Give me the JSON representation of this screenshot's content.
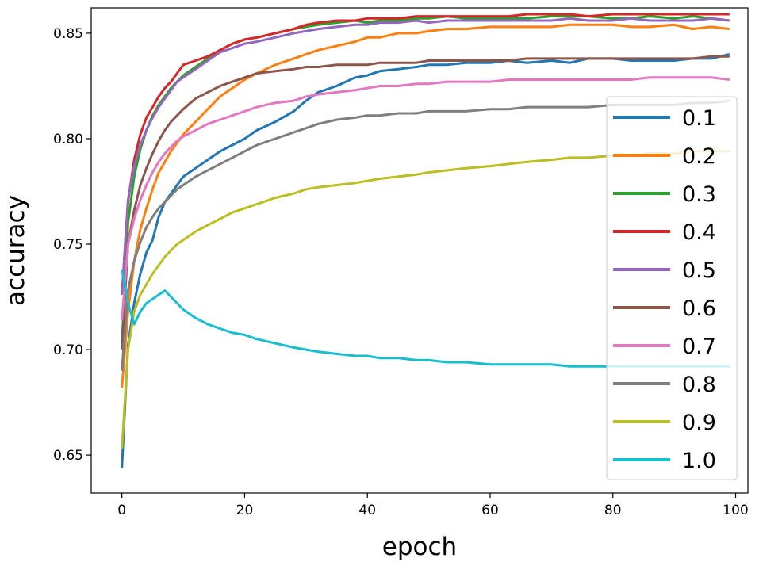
{
  "chart_data": {
    "type": "line",
    "title": "",
    "xlabel": "epoch",
    "ylabel": "accuracy",
    "xlim": [
      -5,
      102
    ],
    "ylim": [
      0.632,
      0.862
    ],
    "xticks": [
      0,
      20,
      40,
      60,
      80,
      100
    ],
    "xtick_labels": [
      "0",
      "20",
      "40",
      "60",
      "80",
      "100"
    ],
    "yticks": [
      0.65,
      0.7,
      0.75,
      0.8,
      0.85
    ],
    "ytick_labels": [
      "0.65",
      "0.70",
      "0.75",
      "0.80",
      "0.85"
    ],
    "grid": false,
    "legend_position": "right",
    "series": [
      {
        "name": "0.1",
        "color": "#1f77b4",
        "x": [
          0,
          1,
          2,
          3,
          4,
          5,
          6,
          7,
          8,
          9,
          10,
          12,
          14,
          16,
          18,
          20,
          22,
          25,
          28,
          30,
          32,
          35,
          38,
          40,
          42,
          45,
          48,
          50,
          53,
          56,
          60,
          63,
          66,
          70,
          73,
          76,
          80,
          83,
          86,
          90,
          93,
          96,
          99
        ],
        "y": [
          0.644,
          0.702,
          0.722,
          0.736,
          0.746,
          0.752,
          0.763,
          0.77,
          0.774,
          0.778,
          0.782,
          0.786,
          0.79,
          0.794,
          0.797,
          0.8,
          0.804,
          0.808,
          0.813,
          0.818,
          0.822,
          0.825,
          0.829,
          0.83,
          0.832,
          0.833,
          0.834,
          0.835,
          0.835,
          0.836,
          0.836,
          0.837,
          0.836,
          0.837,
          0.836,
          0.838,
          0.838,
          0.837,
          0.837,
          0.837,
          0.838,
          0.838,
          0.84
        ]
      },
      {
        "name": "0.2",
        "color": "#ff7f0e",
        "x": [
          0,
          1,
          2,
          3,
          4,
          5,
          6,
          7,
          8,
          9,
          10,
          12,
          14,
          16,
          18,
          20,
          22,
          25,
          28,
          30,
          32,
          35,
          38,
          40,
          42,
          45,
          48,
          50,
          53,
          56,
          60,
          63,
          66,
          70,
          73,
          76,
          80,
          83,
          86,
          90,
          93,
          96,
          99
        ],
        "y": [
          0.682,
          0.718,
          0.742,
          0.757,
          0.767,
          0.776,
          0.784,
          0.789,
          0.794,
          0.798,
          0.802,
          0.808,
          0.814,
          0.82,
          0.824,
          0.828,
          0.831,
          0.835,
          0.838,
          0.84,
          0.842,
          0.844,
          0.846,
          0.848,
          0.848,
          0.85,
          0.85,
          0.851,
          0.852,
          0.852,
          0.853,
          0.853,
          0.853,
          0.853,
          0.854,
          0.854,
          0.854,
          0.853,
          0.853,
          0.854,
          0.852,
          0.853,
          0.852
        ]
      },
      {
        "name": "0.3",
        "color": "#2ca02c",
        "x": [
          0,
          1,
          2,
          3,
          4,
          5,
          6,
          7,
          8,
          9,
          10,
          12,
          14,
          16,
          18,
          20,
          22,
          25,
          28,
          30,
          32,
          35,
          38,
          40,
          42,
          45,
          48,
          50,
          53,
          56,
          60,
          63,
          66,
          70,
          73,
          76,
          80,
          83,
          86,
          90,
          93,
          96,
          99
        ],
        "y": [
          0.703,
          0.76,
          0.782,
          0.795,
          0.804,
          0.811,
          0.816,
          0.82,
          0.824,
          0.827,
          0.83,
          0.834,
          0.838,
          0.842,
          0.845,
          0.847,
          0.848,
          0.85,
          0.852,
          0.853,
          0.854,
          0.855,
          0.856,
          0.855,
          0.856,
          0.856,
          0.857,
          0.857,
          0.858,
          0.857,
          0.857,
          0.857,
          0.857,
          0.858,
          0.858,
          0.858,
          0.857,
          0.857,
          0.858,
          0.857,
          0.858,
          0.857,
          0.856
        ]
      },
      {
        "name": "0.4",
        "color": "#d62728",
        "x": [
          0,
          1,
          2,
          3,
          4,
          5,
          6,
          7,
          8,
          9,
          10,
          12,
          14,
          16,
          18,
          20,
          22,
          25,
          28,
          30,
          32,
          35,
          38,
          40,
          42,
          45,
          48,
          50,
          53,
          56,
          60,
          63,
          66,
          70,
          73,
          76,
          80,
          83,
          86,
          90,
          93,
          96,
          99
        ],
        "y": [
          0.726,
          0.77,
          0.79,
          0.802,
          0.81,
          0.815,
          0.82,
          0.824,
          0.827,
          0.831,
          0.835,
          0.837,
          0.839,
          0.842,
          0.845,
          0.847,
          0.848,
          0.85,
          0.852,
          0.854,
          0.855,
          0.856,
          0.856,
          0.857,
          0.857,
          0.857,
          0.858,
          0.858,
          0.858,
          0.858,
          0.858,
          0.858,
          0.859,
          0.859,
          0.859,
          0.858,
          0.859,
          0.859,
          0.859,
          0.859,
          0.859,
          0.859,
          0.859
        ]
      },
      {
        "name": "0.5",
        "color": "#9467bd",
        "x": [
          0,
          1,
          2,
          3,
          4,
          5,
          6,
          7,
          8,
          9,
          10,
          12,
          14,
          16,
          18,
          20,
          22,
          25,
          28,
          30,
          32,
          35,
          38,
          40,
          42,
          45,
          48,
          50,
          53,
          56,
          60,
          63,
          66,
          70,
          73,
          76,
          80,
          83,
          86,
          90,
          93,
          96,
          99
        ],
        "y": [
          0.726,
          0.771,
          0.787,
          0.797,
          0.804,
          0.81,
          0.815,
          0.819,
          0.823,
          0.827,
          0.829,
          0.833,
          0.837,
          0.841,
          0.843,
          0.845,
          0.846,
          0.848,
          0.85,
          0.851,
          0.852,
          0.853,
          0.854,
          0.854,
          0.855,
          0.855,
          0.856,
          0.855,
          0.856,
          0.856,
          0.856,
          0.856,
          0.856,
          0.856,
          0.857,
          0.856,
          0.856,
          0.857,
          0.856,
          0.856,
          0.856,
          0.857,
          0.856
        ]
      },
      {
        "name": "0.6",
        "color": "#8c564b",
        "x": [
          0,
          1,
          2,
          3,
          4,
          5,
          6,
          7,
          8,
          9,
          10,
          12,
          14,
          16,
          18,
          20,
          22,
          25,
          28,
          30,
          32,
          35,
          38,
          40,
          42,
          45,
          48,
          50,
          53,
          56,
          60,
          63,
          66,
          70,
          73,
          76,
          80,
          83,
          86,
          90,
          93,
          96,
          99
        ],
        "y": [
          0.7,
          0.75,
          0.766,
          0.778,
          0.786,
          0.793,
          0.799,
          0.804,
          0.808,
          0.811,
          0.814,
          0.819,
          0.822,
          0.825,
          0.827,
          0.829,
          0.831,
          0.832,
          0.833,
          0.834,
          0.834,
          0.835,
          0.835,
          0.835,
          0.836,
          0.836,
          0.836,
          0.837,
          0.837,
          0.837,
          0.837,
          0.837,
          0.838,
          0.838,
          0.838,
          0.838,
          0.838,
          0.838,
          0.838,
          0.838,
          0.838,
          0.839,
          0.839
        ]
      },
      {
        "name": "0.7",
        "color": "#e377c2",
        "x": [
          0,
          1,
          2,
          3,
          4,
          5,
          6,
          7,
          8,
          9,
          10,
          12,
          14,
          16,
          18,
          20,
          22,
          25,
          28,
          30,
          32,
          35,
          38,
          40,
          42,
          45,
          48,
          50,
          53,
          56,
          60,
          63,
          66,
          70,
          73,
          76,
          80,
          83,
          86,
          90,
          93,
          96,
          99
        ],
        "y": [
          0.714,
          0.75,
          0.762,
          0.771,
          0.778,
          0.784,
          0.789,
          0.793,
          0.796,
          0.799,
          0.801,
          0.804,
          0.807,
          0.809,
          0.811,
          0.813,
          0.815,
          0.817,
          0.818,
          0.82,
          0.821,
          0.822,
          0.823,
          0.824,
          0.825,
          0.825,
          0.826,
          0.826,
          0.827,
          0.827,
          0.827,
          0.828,
          0.828,
          0.828,
          0.828,
          0.828,
          0.828,
          0.828,
          0.829,
          0.829,
          0.829,
          0.829,
          0.828
        ]
      },
      {
        "name": "0.8",
        "color": "#7f7f7f",
        "x": [
          0,
          1,
          2,
          3,
          4,
          5,
          6,
          7,
          8,
          9,
          10,
          12,
          14,
          16,
          18,
          20,
          22,
          25,
          28,
          30,
          32,
          35,
          38,
          40,
          42,
          45,
          48,
          50,
          53,
          56,
          60,
          63,
          66,
          70,
          73,
          76,
          80,
          83,
          86,
          90,
          93,
          96,
          99
        ],
        "y": [
          0.69,
          0.728,
          0.742,
          0.751,
          0.758,
          0.763,
          0.767,
          0.77,
          0.773,
          0.776,
          0.778,
          0.782,
          0.785,
          0.788,
          0.791,
          0.794,
          0.797,
          0.8,
          0.803,
          0.805,
          0.807,
          0.809,
          0.81,
          0.811,
          0.811,
          0.812,
          0.812,
          0.813,
          0.813,
          0.813,
          0.814,
          0.814,
          0.815,
          0.815,
          0.815,
          0.815,
          0.816,
          0.816,
          0.816,
          0.816,
          0.817,
          0.817,
          0.818
        ]
      },
      {
        "name": "0.9",
        "color": "#bcbd22",
        "x": [
          0,
          1,
          2,
          3,
          4,
          5,
          6,
          7,
          8,
          9,
          10,
          12,
          14,
          16,
          18,
          20,
          22,
          25,
          28,
          30,
          32,
          35,
          38,
          40,
          42,
          45,
          48,
          50,
          53,
          56,
          60,
          63,
          66,
          70,
          73,
          76,
          80,
          83,
          86,
          90,
          93,
          96,
          99
        ],
        "y": [
          0.653,
          0.7,
          0.718,
          0.726,
          0.731,
          0.736,
          0.74,
          0.744,
          0.747,
          0.75,
          0.752,
          0.756,
          0.759,
          0.762,
          0.765,
          0.767,
          0.769,
          0.772,
          0.774,
          0.776,
          0.777,
          0.778,
          0.779,
          0.78,
          0.781,
          0.782,
          0.783,
          0.784,
          0.785,
          0.786,
          0.787,
          0.788,
          0.789,
          0.79,
          0.791,
          0.791,
          0.792,
          0.792,
          0.793,
          0.793,
          0.794,
          0.794,
          0.794
        ]
      },
      {
        "name": "1.0",
        "color": "#17becf",
        "x": [
          0,
          1,
          2,
          3,
          4,
          5,
          6,
          7,
          8,
          9,
          10,
          12,
          14,
          16,
          18,
          20,
          22,
          25,
          28,
          30,
          32,
          35,
          38,
          40,
          42,
          45,
          48,
          50,
          53,
          56,
          60,
          63,
          66,
          70,
          73,
          76,
          80,
          83,
          86,
          90,
          93,
          96,
          99
        ],
        "y": [
          0.738,
          0.722,
          0.712,
          0.718,
          0.722,
          0.724,
          0.726,
          0.728,
          0.725,
          0.722,
          0.719,
          0.715,
          0.712,
          0.71,
          0.708,
          0.707,
          0.705,
          0.703,
          0.701,
          0.7,
          0.699,
          0.698,
          0.697,
          0.697,
          0.696,
          0.696,
          0.695,
          0.695,
          0.694,
          0.694,
          0.693,
          0.693,
          0.693,
          0.693,
          0.692,
          0.692,
          0.692,
          0.692,
          0.692,
          0.692,
          0.692,
          0.692,
          0.692
        ]
      }
    ]
  }
}
